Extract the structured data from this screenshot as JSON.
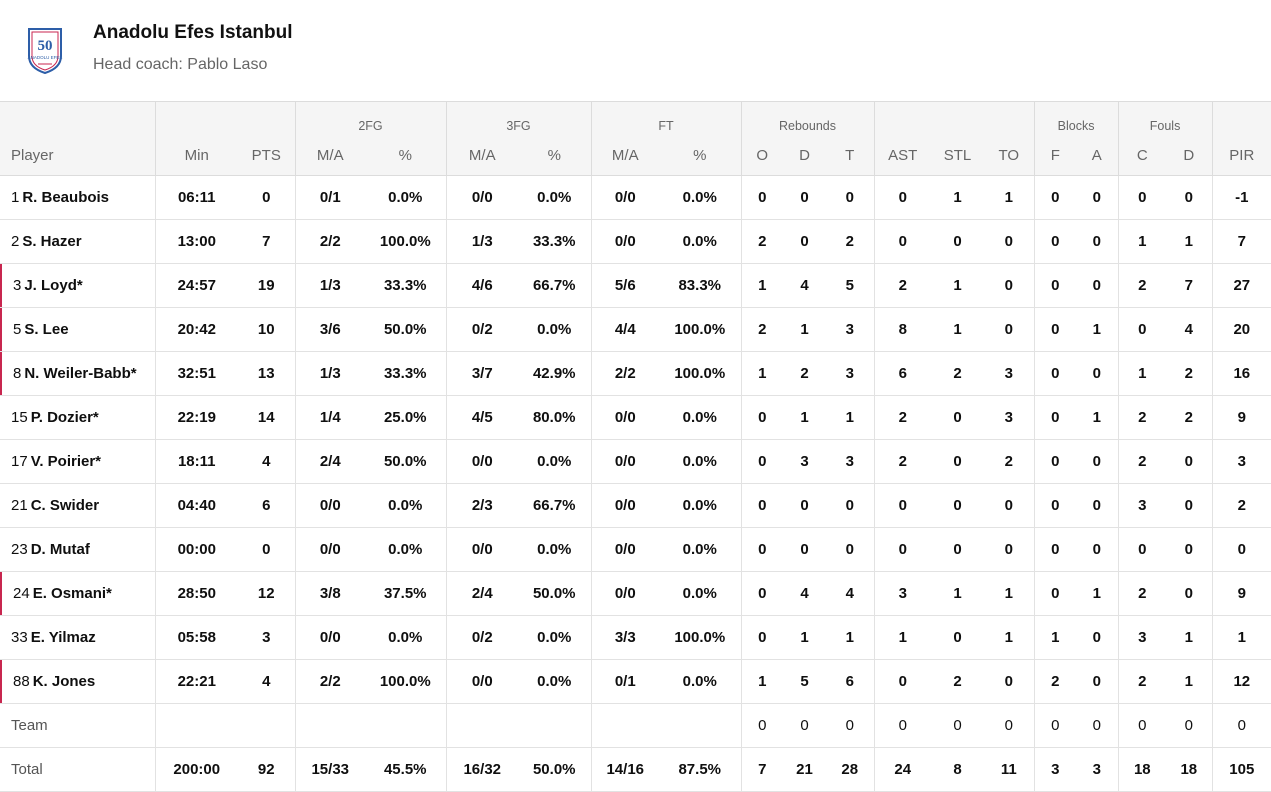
{
  "team": {
    "name": "Anadolu Efes Istanbul",
    "coach": "Head coach: Pablo Laso",
    "logo_text": "50",
    "logo_sub": "ANADOLU EFES",
    "logo_icon": "team-crest-icon",
    "accent_color": "#c8264f"
  },
  "groups": {
    "fg2": "2FG",
    "fg3": "3FG",
    "ft": "FT",
    "reb": "Rebounds",
    "blk": "Blocks",
    "fouls": "Fouls"
  },
  "columns": {
    "player": "Player",
    "min": "Min",
    "pts": "PTS",
    "fg2_ma": "M/A",
    "fg2_pct": "%",
    "fg3_ma": "M/A",
    "fg3_pct": "%",
    "ft_ma": "M/A",
    "ft_pct": "%",
    "o": "O",
    "d": "D",
    "t": "T",
    "ast": "AST",
    "stl": "STL",
    "to": "TO",
    "blk_f": "F",
    "blk_a": "A",
    "foul_c": "C",
    "foul_d": "D",
    "pir": "PIR"
  },
  "players": [
    {
      "num": "1",
      "name": "R. Beaubois",
      "starter": false,
      "stats": [
        "06:11",
        "0",
        "0/1",
        "0.0%",
        "0/0",
        "0.0%",
        "0/0",
        "0.0%",
        "0",
        "0",
        "0",
        "0",
        "1",
        "1",
        "0",
        "0",
        "0",
        "0",
        "-1"
      ]
    },
    {
      "num": "2",
      "name": "S. Hazer",
      "starter": false,
      "stats": [
        "13:00",
        "7",
        "2/2",
        "100.0%",
        "1/3",
        "33.3%",
        "0/0",
        "0.0%",
        "2",
        "0",
        "2",
        "0",
        "0",
        "0",
        "0",
        "0",
        "1",
        "1",
        "7"
      ]
    },
    {
      "num": "3",
      "name": "J. Loyd*",
      "starter": true,
      "stats": [
        "24:57",
        "19",
        "1/3",
        "33.3%",
        "4/6",
        "66.7%",
        "5/6",
        "83.3%",
        "1",
        "4",
        "5",
        "2",
        "1",
        "0",
        "0",
        "0",
        "2",
        "7",
        "27"
      ]
    },
    {
      "num": "5",
      "name": "S. Lee",
      "starter": true,
      "stats": [
        "20:42",
        "10",
        "3/6",
        "50.0%",
        "0/2",
        "0.0%",
        "4/4",
        "100.0%",
        "2",
        "1",
        "3",
        "8",
        "1",
        "0",
        "0",
        "1",
        "0",
        "4",
        "20"
      ]
    },
    {
      "num": "8",
      "name": "N. Weiler-Babb*",
      "starter": true,
      "stats": [
        "32:51",
        "13",
        "1/3",
        "33.3%",
        "3/7",
        "42.9%",
        "2/2",
        "100.0%",
        "1",
        "2",
        "3",
        "6",
        "2",
        "3",
        "0",
        "0",
        "1",
        "2",
        "16"
      ]
    },
    {
      "num": "15",
      "name": "P. Dozier*",
      "starter": false,
      "stats": [
        "22:19",
        "14",
        "1/4",
        "25.0%",
        "4/5",
        "80.0%",
        "0/0",
        "0.0%",
        "0",
        "1",
        "1",
        "2",
        "0",
        "3",
        "0",
        "1",
        "2",
        "2",
        "9"
      ]
    },
    {
      "num": "17",
      "name": "V. Poirier*",
      "starter": false,
      "stats": [
        "18:11",
        "4",
        "2/4",
        "50.0%",
        "0/0",
        "0.0%",
        "0/0",
        "0.0%",
        "0",
        "3",
        "3",
        "2",
        "0",
        "2",
        "0",
        "0",
        "2",
        "0",
        "3"
      ]
    },
    {
      "num": "21",
      "name": "C. Swider",
      "starter": false,
      "stats": [
        "04:40",
        "6",
        "0/0",
        "0.0%",
        "2/3",
        "66.7%",
        "0/0",
        "0.0%",
        "0",
        "0",
        "0",
        "0",
        "0",
        "0",
        "0",
        "0",
        "3",
        "0",
        "2"
      ]
    },
    {
      "num": "23",
      "name": "D. Mutaf",
      "starter": false,
      "stats": [
        "00:00",
        "0",
        "0/0",
        "0.0%",
        "0/0",
        "0.0%",
        "0/0",
        "0.0%",
        "0",
        "0",
        "0",
        "0",
        "0",
        "0",
        "0",
        "0",
        "0",
        "0",
        "0"
      ]
    },
    {
      "num": "24",
      "name": "E. Osmani*",
      "starter": true,
      "stats": [
        "28:50",
        "12",
        "3/8",
        "37.5%",
        "2/4",
        "50.0%",
        "0/0",
        "0.0%",
        "0",
        "4",
        "4",
        "3",
        "1",
        "1",
        "0",
        "1",
        "2",
        "0",
        "9"
      ]
    },
    {
      "num": "33",
      "name": "E. Yilmaz",
      "starter": false,
      "stats": [
        "05:58",
        "3",
        "0/0",
        "0.0%",
        "0/2",
        "0.0%",
        "3/3",
        "100.0%",
        "0",
        "1",
        "1",
        "1",
        "0",
        "1",
        "1",
        "0",
        "3",
        "1",
        "1"
      ]
    },
    {
      "num": "88",
      "name": "K. Jones",
      "starter": true,
      "stats": [
        "22:21",
        "4",
        "2/2",
        "100.0%",
        "0/0",
        "0.0%",
        "0/1",
        "0.0%",
        "1",
        "5",
        "6",
        "0",
        "2",
        "0",
        "2",
        "0",
        "2",
        "1",
        "12"
      ]
    }
  ],
  "team_row": {
    "label": "Team",
    "stats": [
      "",
      "",
      "",
      "",
      "",
      "",
      "",
      "",
      "0",
      "0",
      "0",
      "0",
      "0",
      "0",
      "0",
      "0",
      "0",
      "0",
      "0"
    ]
  },
  "total_row": {
    "label": "Total",
    "stats": [
      "200:00",
      "92",
      "15/33",
      "45.5%",
      "16/32",
      "50.0%",
      "14/16",
      "87.5%",
      "7",
      "21",
      "28",
      "24",
      "8",
      "11",
      "3",
      "3",
      "18",
      "18",
      "105"
    ]
  }
}
